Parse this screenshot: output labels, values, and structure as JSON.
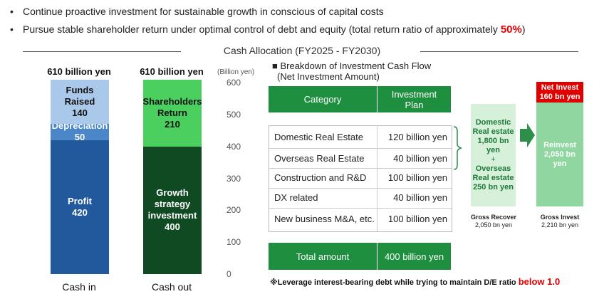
{
  "bullets": [
    {
      "text": "Continue proactive investment for sustainable growth in conscious of capital costs",
      "highlight": ""
    },
    {
      "text": "Pursue stable shareholder return under optimal control of  debt and equity (total return ratio of approximately ",
      "highlight": "50%",
      "suffix": ")"
    }
  ],
  "section_title": "Cash Allocation (FY2025 - FY2030)",
  "chart_data": {
    "type": "bar",
    "stacked": true,
    "categories": [
      "Cash in",
      "Cash out"
    ],
    "bar_totals": [
      "610 billion yen",
      "610 billion yen"
    ],
    "y_unit": "(Billion yen)",
    "ylim": [
      0,
      600
    ],
    "yticks": [
      0,
      100,
      200,
      300,
      400,
      500,
      600
    ],
    "grid": false,
    "stacks": [
      {
        "category": "Cash in",
        "segments": [
          {
            "name": "Profit",
            "value": 420,
            "color": "#22599c",
            "text_color": "#ffffff"
          },
          {
            "name": "Depreciation",
            "value": 50,
            "color": "#4a86c8",
            "text_color": "#ffffff"
          },
          {
            "name": "Funds Raised",
            "value": 140,
            "color": "#a9c8ea",
            "text_color": "#111111"
          }
        ]
      },
      {
        "category": "Cash out",
        "segments": [
          {
            "name": "Growth strategy investment",
            "label_lines": [
              "Growth",
              "strategy",
              "investment"
            ],
            "value": 400,
            "color": "#0f4a22",
            "text_color": "#ffffff"
          },
          {
            "name": "Shareholders Return",
            "label_lines": [
              "Shareholders",
              "Return"
            ],
            "value": 210,
            "color": "#4bd05f",
            "text_color": "#111111"
          }
        ]
      }
    ]
  },
  "breakdown": {
    "title": "■ Breakdown of Investment Cash Flow",
    "subtitle": "(Net Investment Amount)",
    "header": {
      "category": "Category",
      "plan_line1": "Investment",
      "plan_line2": "Plan"
    },
    "rows": [
      {
        "category": "Domestic Real Estate",
        "plan": "120 billion yen"
      },
      {
        "category": "Overseas Real Estate",
        "plan": "40 billion yen"
      },
      {
        "category": "Construction and R&D",
        "plan": "100 billion yen"
      },
      {
        "category": "DX related",
        "plan": "40 billion yen"
      },
      {
        "category": "New business M&A, etc.",
        "plan": "100 billion yen"
      }
    ],
    "total": {
      "label": "Total amount",
      "value": "400 billion yen"
    }
  },
  "flow": {
    "gross_box": {
      "line1": "Domestic",
      "line2": "Real estate",
      "line3": "1,800 bn yen",
      "plus": "+",
      "line4": "Overseas",
      "line5": "Real estate",
      "line6": "250 bn yen"
    },
    "gross_caption1": "Gross Recover",
    "gross_caption2": "2,050 bn yen",
    "net_box": {
      "line1": "Net Invest",
      "line2": "160 bn yen"
    },
    "reinvest_box": {
      "line1": "Reinvest",
      "line2": "2,050 bn yen"
    },
    "invest_caption1": "Gross Invest",
    "invest_caption2": "2,210 bn yen"
  },
  "footnote": {
    "text": "※Leverage interest-bearing debt while trying to maintain D/E ratio ",
    "highlight": "below 1.0"
  },
  "colors": {
    "table_green": "#1e8f3f",
    "flow_light_green": "#d6f0d9",
    "reinvest_green": "#8fd6a0",
    "arrow_green": "#2e8f4a",
    "red": "#e00000"
  }
}
